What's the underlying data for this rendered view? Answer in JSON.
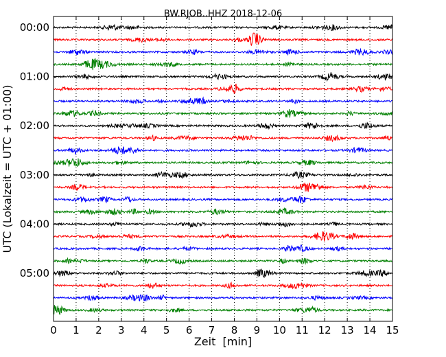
{
  "chart_data": {
    "type": "line",
    "title": "BW.RJOB..HHZ 2018-12-06",
    "xlabel": "Zeit  [min]",
    "ylabel": "UTC (Lokalzeit = UTC + 01:00)",
    "xlim": [
      0,
      15
    ],
    "xticks": [
      0,
      1,
      2,
      3,
      4,
      5,
      6,
      7,
      8,
      9,
      10,
      11,
      12,
      13,
      14,
      15
    ],
    "ytick_labels": [
      "00:00",
      "01:00",
      "02:00",
      "03:00",
      "04:00",
      "05:00"
    ],
    "grid": "vertical dotted at each minute",
    "trace_interval_min": 15,
    "trace_colors": [
      "#000000",
      "#ff0000",
      "#0000ff",
      "#008000"
    ],
    "trace_start_times": [
      "00:00",
      "00:15",
      "00:30",
      "00:45",
      "01:00",
      "01:15",
      "01:30",
      "01:45",
      "02:00",
      "02:15",
      "02:30",
      "02:45",
      "03:00",
      "03:15",
      "03:30",
      "03:45",
      "04:00",
      "04:15",
      "04:30",
      "04:45",
      "05:00",
      "05:15",
      "05:30",
      "05:45"
    ]
  }
}
